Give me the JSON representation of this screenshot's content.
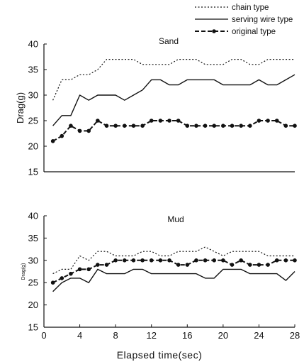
{
  "legend": {
    "items": [
      {
        "label": "chain type",
        "style": "dotted"
      },
      {
        "label": "serving wire type",
        "style": "solid"
      },
      {
        "label": "original type",
        "style": "dash-dot-marker"
      }
    ]
  },
  "colors": {
    "line": "#111111",
    "background": "#ffffff"
  },
  "chart_data": [
    {
      "type": "line",
      "title": "Sand",
      "ylabel": "Drag(g)",
      "xlabel": "",
      "ylim": [
        15,
        40
      ],
      "yticks": [
        15,
        20,
        25,
        30,
        35,
        40
      ],
      "xlim": [
        0,
        28
      ],
      "xticks": [],
      "grid": false,
      "legend_position": "top-right",
      "x": [
        1,
        2,
        3,
        4,
        5,
        6,
        7,
        8,
        9,
        10,
        11,
        12,
        13,
        14,
        15,
        16,
        17,
        18,
        19,
        20,
        21,
        22,
        23,
        24,
        25,
        26,
        27,
        28
      ],
      "series": [
        {
          "name": "chain type",
          "style": "dotted",
          "values": [
            29,
            33,
            33,
            34,
            34,
            35,
            37,
            37,
            37,
            37,
            36,
            36,
            36,
            36,
            37,
            37,
            37,
            36,
            36,
            36,
            37,
            37,
            36,
            36,
            37,
            37,
            37,
            37
          ]
        },
        {
          "name": "serving wire type",
          "style": "solid",
          "values": [
            24,
            26,
            26,
            30,
            29,
            30,
            30,
            30,
            29,
            30,
            31,
            33,
            33,
            32,
            32,
            33,
            33,
            33,
            33,
            32,
            32,
            32,
            32,
            33,
            32,
            32,
            33,
            34
          ]
        },
        {
          "name": "original type",
          "style": "dash-dot-marker",
          "values": [
            21,
            22,
            24,
            23,
            23,
            25,
            24,
            24,
            24,
            24,
            24,
            25,
            25,
            25,
            25,
            24,
            24,
            24,
            24,
            24,
            24,
            24,
            24,
            25,
            25,
            25,
            24,
            24
          ]
        }
      ]
    },
    {
      "type": "line",
      "title": "Mud",
      "ylabel": "Drag(g)",
      "xlabel": "Elapsed time(sec)",
      "ylim": [
        15,
        40
      ],
      "yticks": [
        15,
        20,
        25,
        30,
        35,
        40
      ],
      "xlim": [
        0,
        28
      ],
      "xticks": [
        0,
        4,
        8,
        12,
        16,
        20,
        24,
        28
      ],
      "grid": false,
      "x": [
        1,
        2,
        3,
        4,
        5,
        6,
        7,
        8,
        9,
        10,
        11,
        12,
        13,
        14,
        15,
        16,
        17,
        18,
        19,
        20,
        21,
        22,
        23,
        24,
        25,
        26,
        27,
        28
      ],
      "series": [
        {
          "name": "chain type",
          "style": "dotted",
          "values": [
            27,
            28,
            28,
            31,
            30,
            32,
            32,
            31,
            31,
            31,
            32,
            32,
            31,
            31,
            32,
            32,
            32,
            33,
            32,
            31,
            32,
            32,
            32,
            32,
            31,
            31,
            31,
            31
          ]
        },
        {
          "name": "serving wire type",
          "style": "solid",
          "values": [
            23,
            25,
            26,
            26,
            25,
            28,
            27,
            27,
            27,
            28,
            28,
            27,
            27,
            27,
            27,
            27,
            27,
            26,
            26,
            28,
            28,
            28,
            27,
            27,
            27,
            27,
            25.5,
            27.5
          ]
        },
        {
          "name": "original type",
          "style": "dash-dot-marker",
          "values": [
            25,
            26,
            27,
            28,
            28,
            29,
            29,
            30,
            30,
            30,
            30,
            30,
            30,
            30,
            29,
            29,
            30,
            30,
            30,
            30,
            29,
            30,
            29,
            29,
            29,
            30,
            30,
            30
          ]
        }
      ]
    }
  ]
}
